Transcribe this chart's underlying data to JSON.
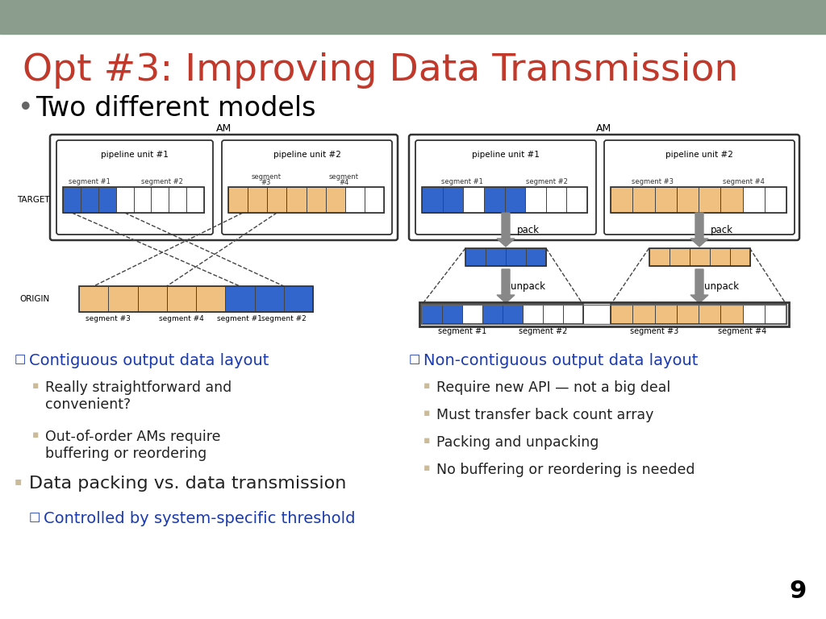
{
  "title": "Opt #3: Improving Data Transmission",
  "title_color": "#C0392B",
  "header_bg": "#8B9E8E",
  "bullet1": "Two different models",
  "left_diagram_label": "Contiguous output data layout",
  "left_sub1": "Really straightforward and\nconvenient?",
  "left_sub2": "Out-of-order AMs require\nbuffering or reordering",
  "right_diagram_label": "Non-contiguous output data layout",
  "right_sub1": "Require new API — not a big deal",
  "right_sub2": "Must transfer back count array",
  "right_sub3": "Packing and unpacking",
  "right_sub4": "No buffering or reordering is needed",
  "bottom_bullet": "Data packing vs. data transmission",
  "bottom_sub": "Controlled by system-specific threshold",
  "blue_color": "#3366CC",
  "orange_color": "#F0C080",
  "page_number": "9",
  "label_color": "#1A3AB0",
  "bottom_bullet_color": "#BBBBAA",
  "sub_bullet_color": "#CCBB99"
}
